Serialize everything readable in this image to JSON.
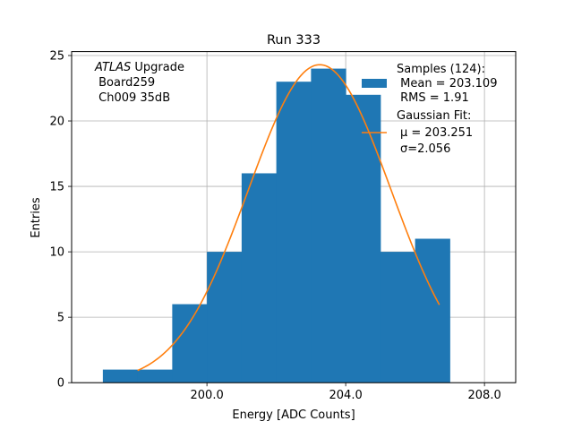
{
  "chart_data": {
    "type": "bar",
    "title": "Run 333",
    "xlabel": "Energy [ADC Counts]",
    "ylabel": "Entries",
    "xlim": [
      196.1,
      208.9
    ],
    "ylim": [
      0,
      25.3
    ],
    "grid": true,
    "x_ticks": [
      200.0,
      204.0,
      208.0
    ],
    "x_tick_labels": [
      "200.0",
      "204.0",
      "208.0"
    ],
    "y_ticks": [
      0,
      5,
      10,
      15,
      20,
      25
    ],
    "y_tick_labels": [
      "0",
      "5",
      "10",
      "15",
      "20",
      "25"
    ],
    "bins": {
      "edges": [
        197,
        198,
        199,
        200,
        201,
        202,
        203,
        204,
        205,
        206,
        207
      ],
      "counts": [
        1,
        1,
        6,
        10,
        16,
        23,
        24,
        22,
        10,
        11
      ]
    },
    "fit": {
      "amplitude": 24.3,
      "mu": 203.251,
      "sigma": 2.056,
      "x_range": [
        198.0,
        206.7
      ]
    },
    "annotation_lines": [
      "ATLAS",
      " Upgrade",
      " Board259",
      " Ch009 35dB"
    ],
    "legend": {
      "position": "top-right",
      "samples_title": "Samples (124):",
      "samples_lines": [
        " Mean = 203.109",
        " RMS = 1.91"
      ],
      "fit_title": "Gaussian Fit:",
      "fit_lines": [
        "μ = 203.251",
        "σ=2.056"
      ]
    },
    "colors": {
      "bars": "#1f77b4",
      "fit_line": "#ff7f0e",
      "grid": "#b0b0b0"
    }
  }
}
